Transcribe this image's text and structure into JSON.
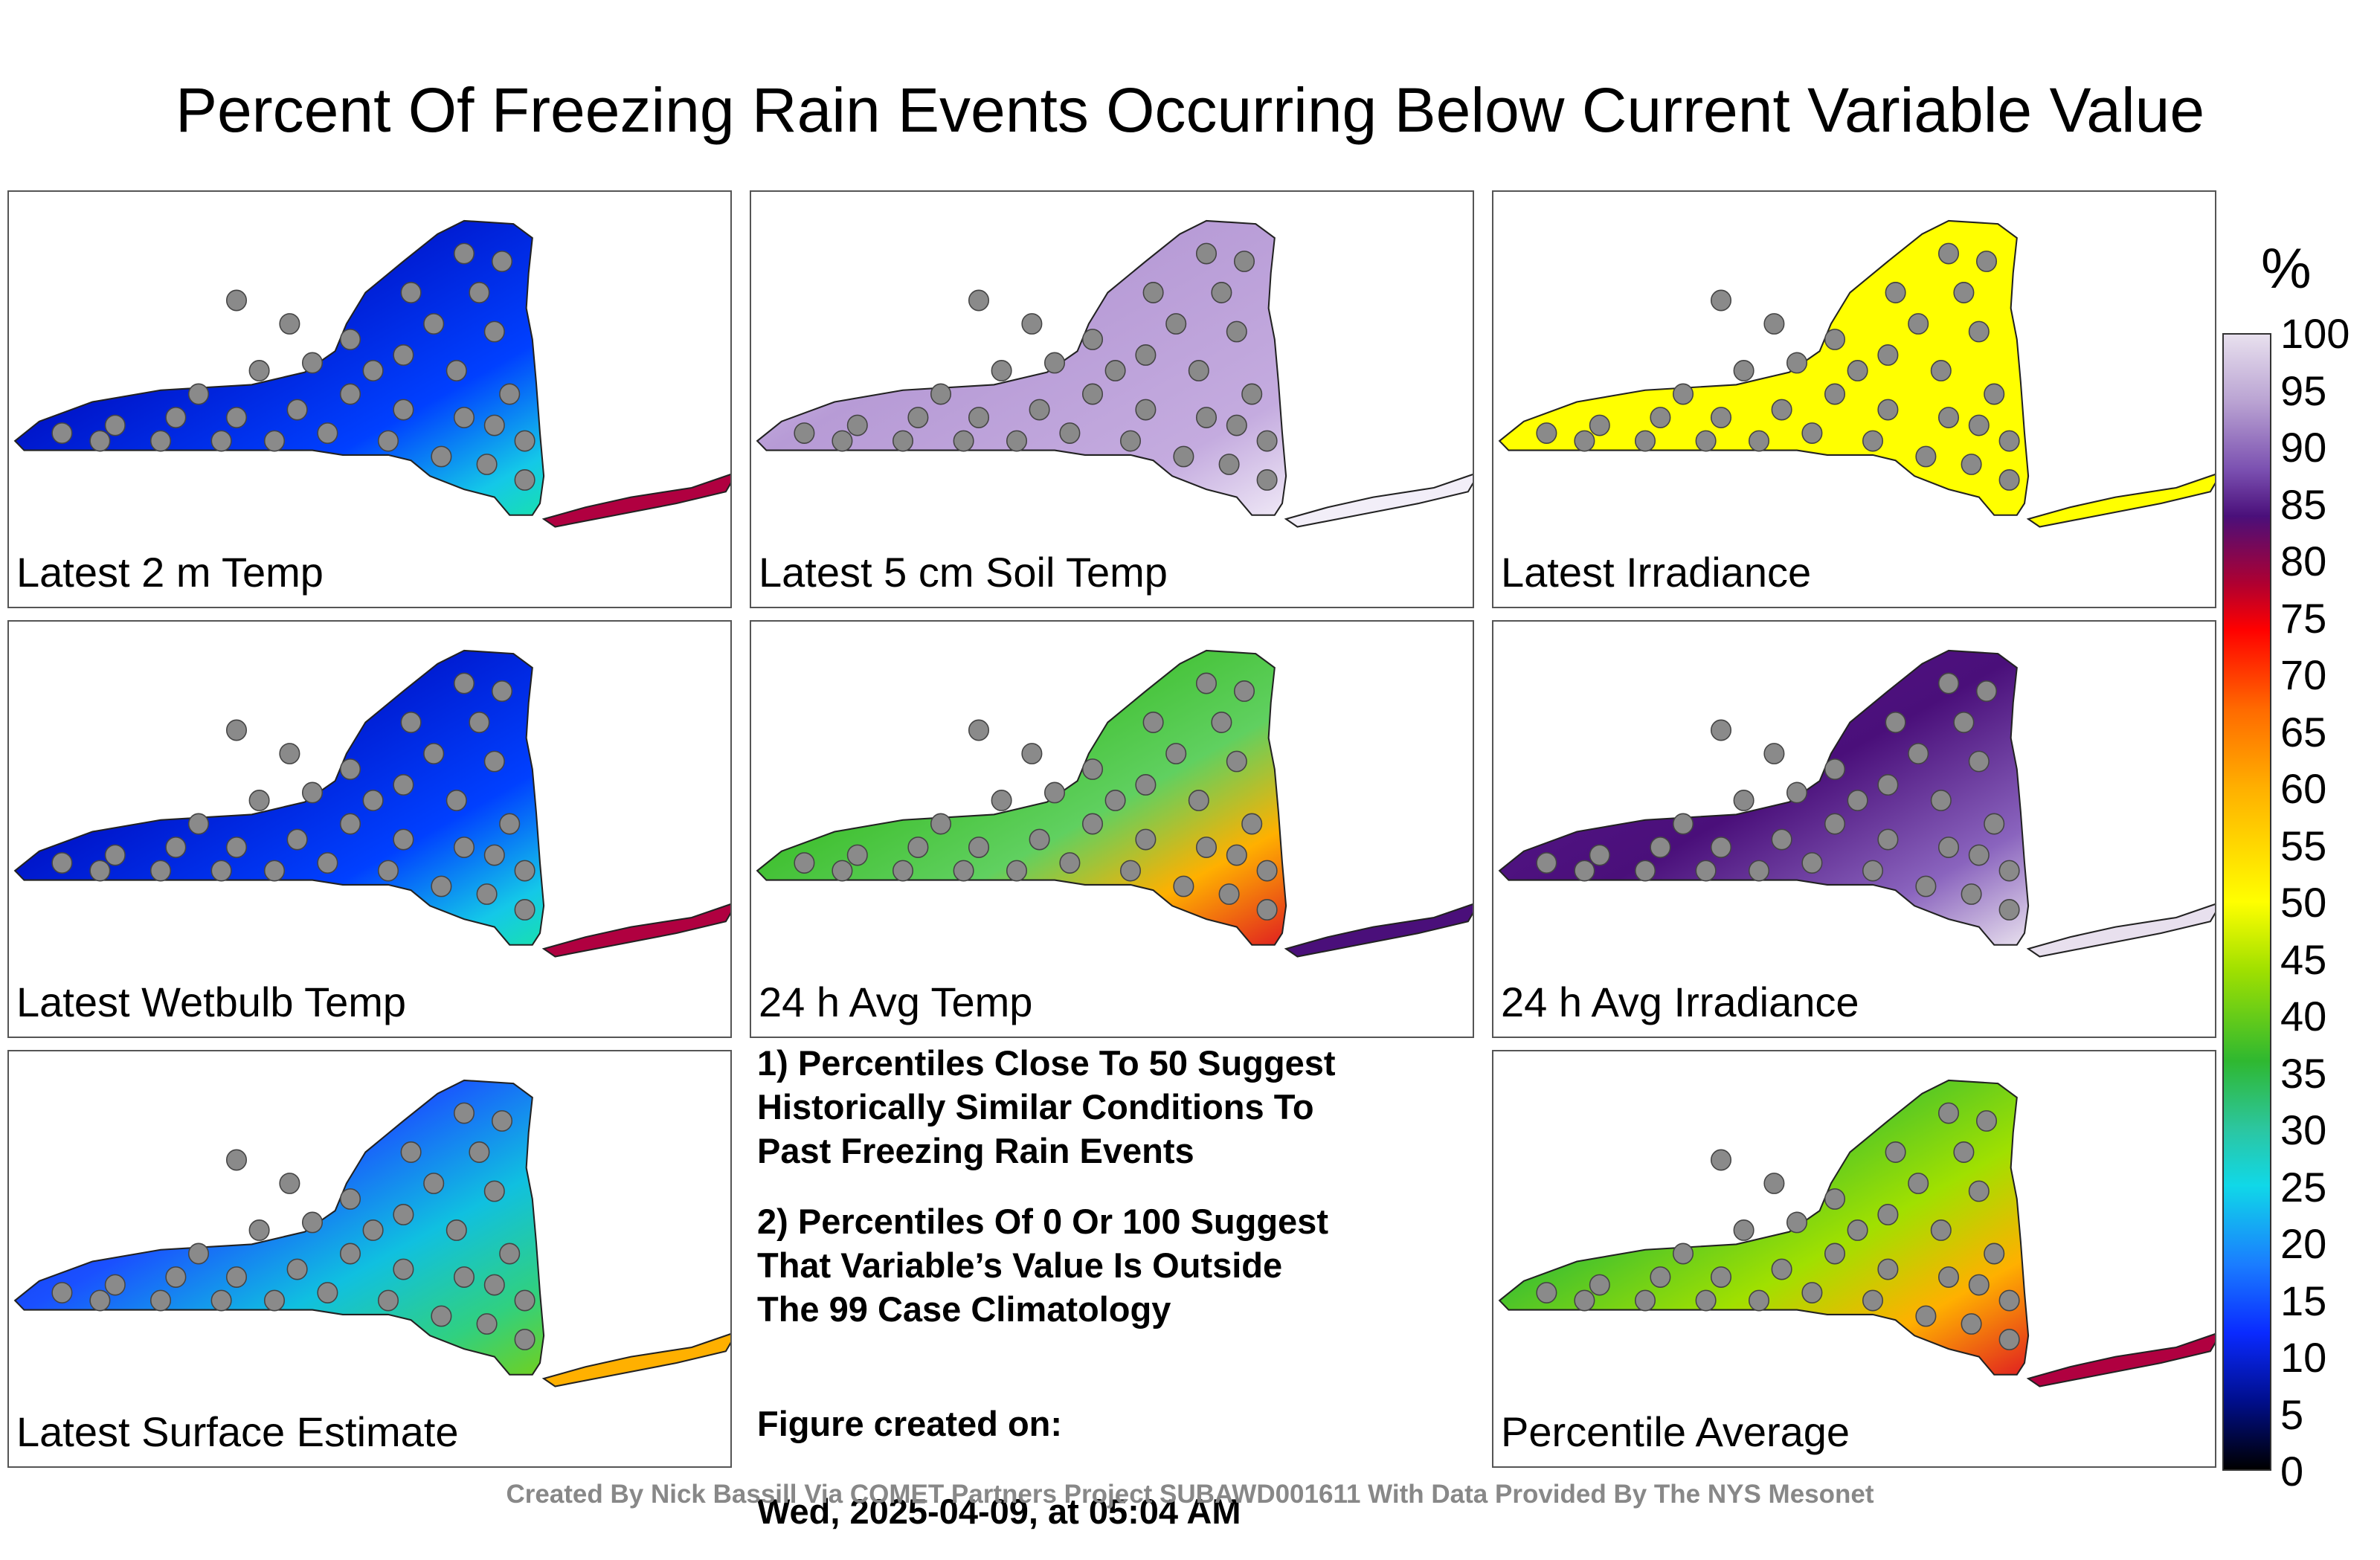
{
  "title": "Percent Of Freezing Rain Events Occurring Below Current Variable Value",
  "panels": [
    {
      "label": "Latest 2 m Temp",
      "scheme": "cold",
      "sample": [
        "3",
        "6",
        "3",
        "3",
        "1",
        "1",
        "2",
        "3",
        "10",
        "8",
        "4",
        "2",
        "11",
        "18",
        "22",
        "14",
        "6",
        "8",
        "3",
        "2",
        "11",
        "4",
        "18",
        "6",
        "10",
        "3",
        "2",
        "11",
        "10",
        "8",
        "35",
        "25",
        "76",
        "91"
      ]
    },
    {
      "label": "Latest 5 cm Soil Temp",
      "scheme": "purple",
      "sample": [
        "94",
        "95",
        "95",
        "96",
        "96",
        "91",
        "100",
        "72",
        "48",
        "95",
        "97",
        "96",
        "96",
        "98",
        "97",
        "100",
        "100",
        "94",
        "95",
        "97",
        "97",
        "98",
        "96",
        "97",
        "100",
        "100",
        "100",
        "98"
      ]
    },
    {
      "label": "Latest Irradiance",
      "scheme": "yellow",
      "sample": [
        "52",
        "52",
        "52",
        "52",
        "52",
        "52",
        "52",
        "52",
        "52",
        "52",
        "52",
        "52",
        "52",
        "52",
        "52",
        "52",
        "52",
        "52",
        "52",
        "52",
        "52",
        "52"
      ]
    },
    {
      "label": "Latest Wetbulb Temp",
      "scheme": "cold",
      "sample": [
        "3",
        "3",
        "10",
        "1",
        "1",
        "2",
        "3",
        "10",
        "23",
        "8",
        "6",
        "3",
        "11",
        "23",
        "14",
        "14",
        "6",
        "18",
        "8",
        "2",
        "10",
        "8",
        "6",
        "10",
        "14",
        "17",
        "39",
        "27",
        "88",
        "99"
      ]
    },
    {
      "label": "24 h Avg Temp",
      "scheme": "green",
      "sample": [
        "36",
        "31",
        "36",
        "58",
        "45",
        "43",
        "17",
        "17",
        "24",
        "31",
        "65",
        "58",
        "49",
        "45",
        "55",
        "29",
        "31",
        "61",
        "75",
        "61",
        "55",
        "36",
        "40",
        "45",
        "49",
        "78",
        "82",
        "81",
        "84",
        "90"
      ]
    },
    {
      "label": "24 h Avg Irradiance",
      "scheme": "violet",
      "sample": [
        "90",
        "92",
        "92",
        "92",
        "89",
        "91",
        "46",
        "83",
        "79",
        "94",
        "93",
        "92",
        "95",
        "92",
        "92",
        "91",
        "92",
        "100",
        "93",
        "92",
        "98",
        "100",
        "100",
        "96",
        "97",
        "100"
      ]
    }
  ],
  "summary_panel": {
    "label": "Latest Surface Estimate",
    "scheme": "cold2",
    "sample": [
      "6",
      "6",
      "22",
      "6",
      "1",
      "1",
      "30",
      "16",
      "12",
      "3",
      "33",
      "16",
      "22",
      "34",
      "39",
      "30",
      "17",
      "8",
      "27",
      "12",
      "39",
      "29",
      "6",
      "8",
      "2",
      "22",
      "27",
      "16",
      "33",
      "56",
      "62",
      "69"
    ]
  },
  "average_panel": {
    "label": "Percentile Average",
    "scheme": "avg",
    "sample": [
      "40",
      "41",
      "48",
      "43",
      "39",
      "36",
      "38",
      "48",
      "54",
      "45",
      "47",
      "53",
      "50",
      "52",
      "49",
      "42",
      "43",
      "38",
      "56",
      "49",
      "34",
      "63",
      "65",
      "80",
      "85",
      "72",
      "86"
    ]
  },
  "notes": [
    "1) Percentiles Close To 50 Suggest\nHistorically Similar Conditions To\nPast Freezing Rain Events",
    "2) Percentiles Of 0 Or 100 Suggest\nThat Variable’s Value Is Outside\nThe 99 Case Climatology"
  ],
  "created_label": "Figure created on:",
  "created_date": "Wed, 2025-04-09, at 05:04 AM",
  "colorbar": {
    "unit": "%",
    "ticks": [
      "100",
      "95",
      "90",
      "85",
      "80",
      "75",
      "70",
      "65",
      "60",
      "55",
      "50",
      "45",
      "40",
      "35",
      "30",
      "25",
      "20",
      "15",
      "10",
      "5",
      "0"
    ]
  },
  "footer": "Created By Nick Bassill Via COMET Partners Project SUBAWD001611 With Data Provided By The NYS Mesonet"
}
